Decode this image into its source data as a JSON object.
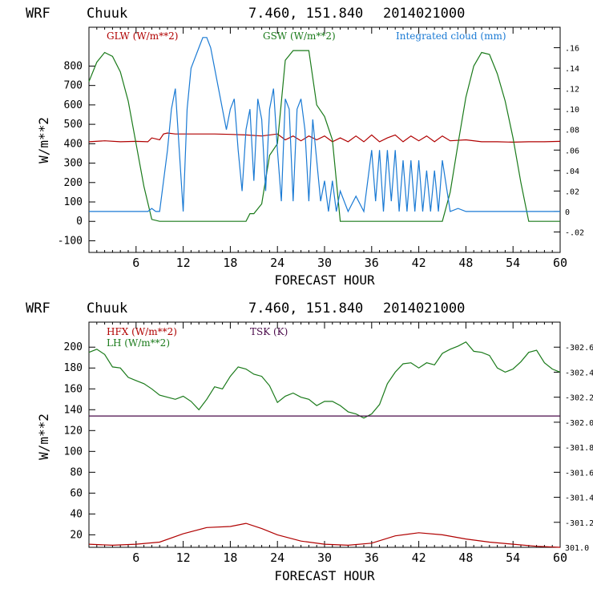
{
  "header": {
    "model": "WRF",
    "station": "Chuuk",
    "coords": "7.460, 151.840",
    "date": "2014021000"
  },
  "colors": {
    "red": "#b00000",
    "green": "#1a7a1a",
    "blue": "#1a7ad4",
    "purple": "#4a0a4a",
    "axis": "#000000"
  },
  "chart_data": [
    {
      "type": "line",
      "xlabel": "FORECAST HOUR",
      "ylabel": "W/m**2",
      "xlim": [
        0,
        60
      ],
      "ylim": [
        -160,
        1000
      ],
      "y2lim": [
        -0.04,
        0.18
      ],
      "x_ticks": [
        "6",
        "12",
        "18",
        "24",
        "30",
        "36",
        "42",
        "48",
        "54",
        "60"
      ],
      "y_ticks": [
        "-100",
        "0",
        "100",
        "200",
        "300",
        "400",
        "500",
        "600",
        "700",
        "800"
      ],
      "y2_ticks": [
        "-.02",
        "0",
        ".02",
        ".04",
        ".06",
        ".08",
        ".10",
        ".12",
        ".14",
        ".16"
      ],
      "legend": [
        "GLW (W/m**2)",
        "GSW (W/m**2)",
        "Integrated cloud (mm)"
      ],
      "series": [
        {
          "name": "GLW (W/m**2)",
          "color": "red",
          "axis": "left",
          "x": [
            0,
            2,
            4,
            6,
            7.5,
            8,
            9,
            9.5,
            10,
            11,
            12,
            14,
            16,
            18,
            20,
            22,
            24,
            25,
            26,
            27,
            28,
            29,
            30,
            31,
            32,
            33,
            34,
            35,
            36,
            37,
            38,
            39,
            40,
            41,
            42,
            43,
            44,
            45,
            46,
            48,
            50,
            52,
            54,
            56,
            58,
            60
          ],
          "y": [
            410,
            415,
            410,
            412,
            410,
            430,
            420,
            450,
            455,
            450,
            450,
            450,
            450,
            448,
            445,
            440,
            450,
            420,
            440,
            415,
            440,
            420,
            440,
            410,
            430,
            410,
            440,
            410,
            445,
            410,
            430,
            445,
            410,
            440,
            415,
            440,
            410,
            440,
            415,
            420,
            410,
            410,
            408,
            410,
            410,
            412
          ]
        },
        {
          "name": "GSW (W/m**2)",
          "color": "green",
          "axis": "left",
          "x": [
            0,
            1,
            2,
            3,
            4,
            5,
            6,
            7,
            8,
            9,
            10,
            14,
            18,
            20,
            20.5,
            21,
            22,
            23,
            24,
            25,
            26,
            27,
            28,
            29,
            30,
            31,
            32,
            33,
            40,
            44,
            45,
            46,
            47,
            48,
            49,
            50,
            51,
            52,
            53,
            54,
            55,
            56,
            57,
            60
          ],
          "y": [
            720,
            820,
            870,
            850,
            770,
            620,
            400,
            180,
            10,
            0,
            0,
            0,
            0,
            0,
            40,
            40,
            90,
            340,
            400,
            830,
            880,
            880,
            880,
            600,
            540,
            420,
            0,
            0,
            0,
            0,
            0,
            150,
            400,
            640,
            800,
            870,
            860,
            760,
            620,
            430,
            200,
            0,
            0,
            0
          ]
        },
        {
          "name": "Integrated cloud (mm)",
          "color": "blue",
          "axis": "right",
          "x": [
            0,
            7.5,
            8,
            8.5,
            9,
            10,
            10.5,
            11,
            11.5,
            12,
            12.5,
            13,
            13.5,
            14,
            14.5,
            15,
            15.5,
            16,
            16.5,
            17,
            17.5,
            18,
            18.5,
            19,
            19.5,
            20,
            20.5,
            21,
            21.5,
            22,
            22.5,
            23,
            23.5,
            24,
            24.5,
            25,
            25.5,
            26,
            26.5,
            27,
            27.5,
            28,
            28.5,
            29,
            29.5,
            30,
            30.5,
            31,
            31.5,
            32,
            33,
            34,
            35,
            36,
            36.5,
            37,
            37.5,
            38,
            38.5,
            39,
            39.5,
            40,
            40.5,
            41,
            41.5,
            42,
            42.5,
            43,
            43.5,
            44,
            44.5,
            45,
            46,
            47,
            48,
            60
          ],
          "y": [
            0,
            0,
            0.003,
            0,
            0,
            0.06,
            0.1,
            0.12,
            0.06,
            0,
            0.1,
            0.14,
            0.15,
            0.16,
            0.17,
            0.17,
            0.16,
            0.14,
            0.12,
            0.1,
            0.08,
            0.1,
            0.11,
            0.06,
            0.02,
            0.08,
            0.1,
            0.03,
            0.11,
            0.09,
            0.02,
            0.1,
            0.12,
            0.06,
            0.01,
            0.11,
            0.1,
            0.01,
            0.1,
            0.11,
            0.08,
            0.01,
            0.09,
            0.05,
            0.01,
            0.03,
            0.0,
            0.03,
            0.0,
            0.02,
            0.0,
            0.015,
            0.0,
            0.06,
            0.01,
            0.06,
            0.0,
            0.06,
            0.01,
            0.06,
            0.0,
            0.05,
            0.0,
            0.05,
            0.0,
            0.05,
            0.0,
            0.04,
            0.0,
            0.04,
            0.0,
            0.05,
            0.0,
            0.003,
            0,
            0
          ]
        }
      ]
    },
    {
      "type": "line",
      "xlabel": "FORECAST HOUR",
      "ylabel": "W/m**2",
      "xlim": [
        0,
        60
      ],
      "ylim": [
        8,
        224
      ],
      "y2lim": [
        301.0,
        302.8
      ],
      "x_ticks": [
        "6",
        "12",
        "18",
        "24",
        "30",
        "36",
        "42",
        "48",
        "54",
        "60"
      ],
      "y_ticks": [
        "20",
        "40",
        "60",
        "80",
        "100",
        "120",
        "140",
        "160",
        "180",
        "200"
      ],
      "y2_ticks": [
        "301.0",
        "-301.2",
        "-301.4",
        "-301.6",
        "-301.8",
        "-302.0",
        "-302.2",
        "-302.4",
        "-302.6"
      ],
      "legend": [
        "HFX (W/m**2)",
        "LH  (W/m**2)",
        "TSK (K)"
      ],
      "series": [
        {
          "name": "HFX (W/m**2)",
          "color": "red",
          "axis": "left",
          "x": [
            0,
            3,
            6,
            9,
            12,
            15,
            18,
            20,
            22,
            24,
            27,
            30,
            33,
            36,
            39,
            42,
            45,
            48,
            51,
            54,
            57,
            60
          ],
          "y": [
            11,
            10,
            11,
            13,
            21,
            27,
            28,
            31,
            26,
            20,
            14,
            11,
            10,
            12,
            19,
            22,
            20,
            16,
            13,
            11,
            9,
            8
          ]
        },
        {
          "name": "LH  (W/m**2)",
          "color": "green",
          "axis": "left",
          "x": [
            0,
            1,
            2,
            3,
            4,
            5,
            6,
            7,
            8,
            9,
            10,
            11,
            12,
            13,
            14,
            15,
            16,
            17,
            18,
            19,
            20,
            21,
            22,
            23,
            24,
            25,
            26,
            27,
            28,
            29,
            30,
            31,
            32,
            33,
            34,
            35,
            36,
            37,
            38,
            39,
            40,
            41,
            42,
            43,
            44,
            45,
            46,
            47,
            48,
            49,
            50,
            51,
            52,
            53,
            54,
            55,
            56,
            57,
            58,
            59,
            60
          ],
          "y": [
            195,
            198,
            193,
            181,
            180,
            171,
            168,
            165,
            160,
            154,
            152,
            150,
            153,
            148,
            140,
            150,
            162,
            160,
            172,
            181,
            179,
            174,
            172,
            163,
            147,
            153,
            156,
            152,
            150,
            144,
            148,
            148,
            144,
            138,
            136,
            132,
            136,
            145,
            165,
            176,
            184,
            185,
            180,
            185,
            183,
            194,
            198,
            201,
            205,
            196,
            195,
            192,
            180,
            176,
            179,
            186,
            195,
            197,
            185,
            179,
            176
          ]
        },
        {
          "name": "TSK (K)",
          "color": "purple",
          "axis": "right",
          "x": [
            0,
            60
          ],
          "y": [
            302.05,
            302.05
          ]
        }
      ]
    }
  ]
}
